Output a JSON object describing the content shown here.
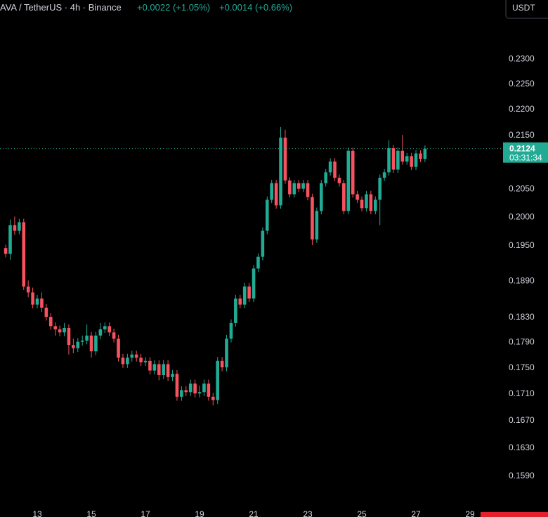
{
  "chart_data": {
    "type": "candlestick",
    "title": "AVA / TetherUS · 4h · Binance",
    "changes": [
      "+0.0022 (+1.05%)",
      "+0.0014 (+0.66%)"
    ],
    "currency_button": "USDT",
    "last_price": 0.2124,
    "countdown": "03:31:34",
    "up_color": "#22ab94",
    "down_color": "#f7525f",
    "log_scale": true,
    "ylim": [
      0.155,
      0.2423
    ],
    "yticks": [
      {
        "value": 0.23,
        "label": "0.2300"
      },
      {
        "value": 0.225,
        "label": "0.2250"
      },
      {
        "value": 0.22,
        "label": "0.2200"
      },
      {
        "value": 0.215,
        "label": "0.2150"
      },
      {
        "value": 0.205,
        "label": "0.2050"
      },
      {
        "value": 0.2,
        "label": "0.2000"
      },
      {
        "value": 0.195,
        "label": "0.1950"
      },
      {
        "value": 0.189,
        "label": "0.1890"
      },
      {
        "value": 0.183,
        "label": "0.1830"
      },
      {
        "value": 0.179,
        "label": "0.1790"
      },
      {
        "value": 0.175,
        "label": "0.1750"
      },
      {
        "value": 0.171,
        "label": "0.1710"
      },
      {
        "value": 0.167,
        "label": "0.1670"
      },
      {
        "value": 0.163,
        "label": "0.1630"
      },
      {
        "value": 0.159,
        "label": "0.1590"
      }
    ],
    "categories": [
      null,
      null,
      null,
      null,
      null,
      null,
      null,
      "13",
      null,
      null,
      null,
      null,
      null,
      null,
      null,
      null,
      null,
      null,
      null,
      "15",
      null,
      null,
      null,
      null,
      null,
      null,
      null,
      null,
      null,
      null,
      null,
      "17",
      null,
      null,
      null,
      null,
      null,
      null,
      null,
      null,
      null,
      null,
      null,
      "19",
      null,
      null,
      null,
      null,
      null,
      null,
      null,
      null,
      null,
      null,
      null,
      "21",
      null,
      null,
      null,
      null,
      null,
      null,
      null,
      null,
      null,
      null,
      null,
      "23",
      null,
      null,
      null,
      null,
      null,
      null,
      null,
      null,
      null,
      null,
      null,
      "25",
      null,
      null,
      null,
      null,
      null,
      null,
      null,
      null,
      null,
      null,
      null,
      "27",
      null,
      null,
      null,
      null,
      null,
      null,
      null,
      null,
      null,
      null,
      null,
      "29"
    ],
    "open": [
      0.1945,
      0.1935,
      0.1985,
      0.1975,
      0.199,
      0.188,
      0.187,
      0.185,
      0.186,
      0.1845,
      0.183,
      0.1815,
      0.181,
      0.1805,
      0.1812,
      0.1785,
      0.178,
      0.179,
      0.1792,
      0.18,
      0.1775,
      0.18,
      0.181,
      0.1815,
      0.1805,
      0.1795,
      0.1765,
      0.1755,
      0.1765,
      0.177,
      0.1765,
      0.1758,
      0.176,
      0.1745,
      0.1755,
      0.1738,
      0.1755,
      0.1735,
      0.174,
      0.1705,
      0.1715,
      0.1712,
      0.1725,
      0.171,
      0.1712,
      0.1725,
      0.1705,
      0.17,
      0.176,
      0.175,
      0.1795,
      0.182,
      0.186,
      0.185,
      0.188,
      0.186,
      0.191,
      0.193,
      0.1975,
      0.203,
      0.206,
      0.202,
      0.2145,
      0.2065,
      0.204,
      0.206,
      0.205,
      0.206,
      0.2035,
      0.196,
      0.201,
      0.206,
      0.208,
      0.21,
      0.207,
      0.206,
      0.201,
      0.212,
      0.204,
      0.203,
      0.2015,
      0.204,
      0.201,
      0.203,
      0.207,
      0.208,
      0.2125,
      0.2085,
      0.212,
      0.21,
      0.211,
      0.209,
      0.2115,
      0.2105,
      null,
      null,
      null,
      null,
      null,
      null,
      null,
      null,
      null,
      null
    ],
    "high": [
      0.1951,
      0.1995,
      0.2,
      0.1996,
      0.1996,
      0.189,
      0.1878,
      0.1866,
      0.187,
      0.1851,
      0.1836,
      0.1821,
      0.1816,
      0.182,
      0.1818,
      0.1795,
      0.1796,
      0.18,
      0.1818,
      0.1806,
      0.1806,
      0.182,
      0.1821,
      0.1821,
      0.1811,
      0.1801,
      0.1771,
      0.1771,
      0.1776,
      0.1776,
      0.1771,
      0.1766,
      0.1766,
      0.1761,
      0.1761,
      0.1761,
      0.1761,
      0.1746,
      0.1746,
      0.1721,
      0.1721,
      0.1731,
      0.1731,
      0.1722,
      0.1731,
      0.1731,
      0.1711,
      0.1766,
      0.1766,
      0.1801,
      0.1826,
      0.1866,
      0.1866,
      0.1886,
      0.1886,
      0.1916,
      0.1936,
      0.1981,
      0.2036,
      0.2066,
      0.2066,
      0.2165,
      0.216,
      0.2071,
      0.2066,
      0.2066,
      0.2066,
      0.2066,
      0.2041,
      0.2016,
      0.2066,
      0.2086,
      0.2106,
      0.2106,
      0.2076,
      0.2066,
      0.2126,
      0.2126,
      0.2046,
      0.2036,
      0.2046,
      0.2046,
      0.2036,
      0.2076,
      0.2086,
      0.214,
      0.2131,
      0.2126,
      0.215,
      0.2116,
      0.2116,
      0.2121,
      0.2121,
      0.213,
      null,
      null,
      null,
      null,
      null,
      null,
      null,
      null,
      null,
      null
    ],
    "low": [
      0.1929,
      0.1925,
      0.1968,
      0.1969,
      0.1874,
      0.1862,
      0.1844,
      0.1844,
      0.1838,
      0.1824,
      0.1809,
      0.18,
      0.1799,
      0.1799,
      0.177,
      0.1772,
      0.1774,
      0.1784,
      0.1786,
      0.1765,
      0.1769,
      0.1794,
      0.1804,
      0.1799,
      0.1789,
      0.1759,
      0.1749,
      0.1749,
      0.1759,
      0.1759,
      0.1752,
      0.1752,
      0.1739,
      0.1739,
      0.173,
      0.1732,
      0.1729,
      0.1729,
      0.1699,
      0.1699,
      0.1706,
      0.1706,
      0.1704,
      0.1704,
      0.1706,
      0.1699,
      0.1692,
      0.1694,
      0.1744,
      0.1744,
      0.1789,
      0.1814,
      0.1844,
      0.1844,
      0.1854,
      0.1854,
      0.1904,
      0.1924,
      0.1969,
      0.2024,
      0.2014,
      0.2014,
      0.2059,
      0.2034,
      0.2034,
      0.2044,
      0.2044,
      0.2029,
      0.195,
      0.1954,
      0.2004,
      0.2054,
      0.2074,
      0.2064,
      0.2054,
      0.2004,
      0.2004,
      0.2034,
      0.2024,
      0.2009,
      0.2009,
      0.2004,
      0.2004,
      0.1985,
      0.2064,
      0.2074,
      0.2079,
      0.2079,
      0.2094,
      0.2094,
      0.2084,
      0.2084,
      0.2099,
      0.2099,
      null,
      null,
      null,
      null,
      null,
      null,
      null,
      null,
      null,
      null
    ],
    "close": [
      0.1935,
      0.1985,
      0.1975,
      0.199,
      0.188,
      0.187,
      0.185,
      0.186,
      0.1845,
      0.183,
      0.1815,
      0.181,
      0.1805,
      0.1812,
      0.1785,
      0.178,
      0.179,
      0.1792,
      0.18,
      0.1775,
      0.18,
      0.181,
      0.1815,
      0.1805,
      0.1795,
      0.1765,
      0.1755,
      0.1765,
      0.177,
      0.1765,
      0.1758,
      0.176,
      0.1745,
      0.1755,
      0.1738,
      0.1755,
      0.1735,
      0.174,
      0.1705,
      0.1715,
      0.1712,
      0.1725,
      0.171,
      0.1712,
      0.1725,
      0.1705,
      0.17,
      0.176,
      0.175,
      0.1795,
      0.182,
      0.186,
      0.185,
      0.188,
      0.186,
      0.191,
      0.193,
      0.1975,
      0.203,
      0.206,
      0.202,
      0.2145,
      0.2065,
      0.204,
      0.206,
      0.205,
      0.206,
      0.2035,
      0.196,
      0.201,
      0.206,
      0.208,
      0.21,
      0.207,
      0.206,
      0.201,
      0.212,
      0.204,
      0.203,
      0.2015,
      0.204,
      0.201,
      0.203,
      0.207,
      0.208,
      0.2125,
      0.2085,
      0.212,
      0.21,
      0.211,
      0.209,
      0.2115,
      0.2105,
      0.2124,
      null,
      null,
      null,
      null,
      null,
      null,
      null,
      null,
      null,
      null
    ]
  }
}
